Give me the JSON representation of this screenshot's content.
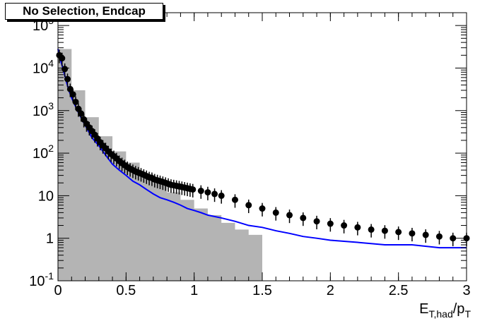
{
  "chart_data": {
    "type": "histogram",
    "title": "No Selection, Endcap",
    "xlabel": {
      "main": "E",
      "sub1": "T,had",
      "mid": "/p",
      "sub2": "T"
    },
    "xlim": [
      0,
      3
    ],
    "ylim": [
      0.1,
      200000
    ],
    "ylog": true,
    "x_ticks": [
      "0",
      "0.5",
      "1",
      "1.5",
      "2",
      "2.5",
      "3"
    ],
    "x_tick_values": [
      0,
      0.5,
      1,
      1.5,
      2,
      2.5,
      3
    ],
    "y_ticks": [
      "10-1",
      "1",
      "10",
      "10²",
      "10³",
      "10⁴",
      "10⁵"
    ],
    "y_tick_labels": [
      {
        "base": "10",
        "exp": "-1"
      },
      {
        "base": "1",
        "exp": ""
      },
      {
        "base": "10",
        "exp": ""
      },
      {
        "base": "10",
        "exp": "2"
      },
      {
        "base": "10",
        "exp": "3"
      },
      {
        "base": "10",
        "exp": "4"
      },
      {
        "base": "10",
        "exp": "5"
      }
    ],
    "y_tick_values": [
      0.1,
      1,
      10,
      100,
      1000,
      10000,
      100000
    ],
    "series": [
      {
        "kind": "filled-histogram",
        "color": "#b4b4b4",
        "bins": [
          [
            0.0,
            28000
          ],
          [
            0.1,
            3000
          ],
          [
            0.2,
            700
          ],
          [
            0.3,
            250
          ],
          [
            0.4,
            110
          ],
          [
            0.5,
            60
          ],
          [
            0.6,
            32
          ],
          [
            0.7,
            20
          ],
          [
            0.8,
            12
          ],
          [
            0.9,
            8
          ],
          [
            1.0,
            5
          ],
          [
            1.1,
            3.5
          ],
          [
            1.2,
            2.3
          ],
          [
            1.3,
            1.6
          ],
          [
            1.4,
            1.2
          ],
          [
            1.5,
            0.1
          ]
        ]
      },
      {
        "kind": "step-line",
        "color": "#0000ff",
        "points": [
          [
            0.0,
            28000
          ],
          [
            0.02,
            15000
          ],
          [
            0.04,
            9000
          ],
          [
            0.06,
            5000
          ],
          [
            0.08,
            3000
          ],
          [
            0.1,
            2000
          ],
          [
            0.15,
            900
          ],
          [
            0.2,
            450
          ],
          [
            0.25,
            230
          ],
          [
            0.3,
            150
          ],
          [
            0.35,
            90
          ],
          [
            0.4,
            55
          ],
          [
            0.45,
            40
          ],
          [
            0.5,
            30
          ],
          [
            0.55,
            22
          ],
          [
            0.6,
            18
          ],
          [
            0.65,
            14
          ],
          [
            0.7,
            11
          ],
          [
            0.75,
            9
          ],
          [
            0.8,
            8
          ],
          [
            0.85,
            7
          ],
          [
            0.9,
            6
          ],
          [
            0.95,
            5
          ],
          [
            1.0,
            4.5
          ],
          [
            1.05,
            4
          ],
          [
            1.1,
            3.5
          ],
          [
            1.2,
            3
          ],
          [
            1.3,
            2.5
          ],
          [
            1.4,
            2
          ],
          [
            1.5,
            1.8
          ],
          [
            1.6,
            1.5
          ],
          [
            1.7,
            1.3
          ],
          [
            1.8,
            1.1
          ],
          [
            1.9,
            1
          ],
          [
            2.0,
            0.9
          ],
          [
            2.2,
            0.8
          ],
          [
            2.4,
            0.7
          ],
          [
            2.6,
            0.7
          ],
          [
            2.8,
            0.6
          ],
          [
            3.0,
            0.6
          ]
        ]
      },
      {
        "kind": "points-with-errors",
        "color": "#000000",
        "points": [
          [
            0.01,
            20000
          ],
          [
            0.03,
            17000
          ],
          [
            0.05,
            9500
          ],
          [
            0.07,
            5500
          ],
          [
            0.09,
            3200
          ],
          [
            0.11,
            2400
          ],
          [
            0.13,
            1600
          ],
          [
            0.15,
            1100
          ],
          [
            0.17,
            850
          ],
          [
            0.19,
            620
          ],
          [
            0.21,
            490
          ],
          [
            0.23,
            400
          ],
          [
            0.25,
            330
          ],
          [
            0.27,
            270
          ],
          [
            0.29,
            220
          ],
          [
            0.31,
            180
          ],
          [
            0.33,
            150
          ],
          [
            0.35,
            130
          ],
          [
            0.37,
            110
          ],
          [
            0.39,
            95
          ],
          [
            0.41,
            85
          ],
          [
            0.43,
            75
          ],
          [
            0.45,
            65
          ],
          [
            0.47,
            58
          ],
          [
            0.49,
            52
          ],
          [
            0.51,
            47
          ],
          [
            0.53,
            43
          ],
          [
            0.55,
            40
          ],
          [
            0.57,
            37
          ],
          [
            0.59,
            35
          ],
          [
            0.61,
            33
          ],
          [
            0.63,
            31
          ],
          [
            0.65,
            29
          ],
          [
            0.67,
            27
          ],
          [
            0.69,
            26
          ],
          [
            0.71,
            24
          ],
          [
            0.73,
            23
          ],
          [
            0.75,
            22
          ],
          [
            0.77,
            21
          ],
          [
            0.79,
            20
          ],
          [
            0.81,
            19
          ],
          [
            0.83,
            18
          ],
          [
            0.85,
            17.5
          ],
          [
            0.87,
            17
          ],
          [
            0.89,
            16.5
          ],
          [
            0.91,
            16
          ],
          [
            0.93,
            15.5
          ],
          [
            0.95,
            15
          ],
          [
            0.97,
            14.5
          ],
          [
            0.99,
            14
          ],
          [
            1.05,
            13
          ],
          [
            1.1,
            12
          ],
          [
            1.15,
            11
          ],
          [
            1.2,
            10
          ],
          [
            1.3,
            8
          ],
          [
            1.4,
            6
          ],
          [
            1.5,
            5
          ],
          [
            1.6,
            4
          ],
          [
            1.7,
            3.5
          ],
          [
            1.8,
            3
          ],
          [
            1.9,
            2.5
          ],
          [
            2.0,
            2.2
          ],
          [
            2.1,
            2
          ],
          [
            2.2,
            1.8
          ],
          [
            2.3,
            1.6
          ],
          [
            2.4,
            1.5
          ],
          [
            2.5,
            1.4
          ],
          [
            2.6,
            1.3
          ],
          [
            2.7,
            1.2
          ],
          [
            2.8,
            1.1
          ],
          [
            2.9,
            1
          ],
          [
            3.0,
            1
          ]
        ]
      }
    ]
  }
}
